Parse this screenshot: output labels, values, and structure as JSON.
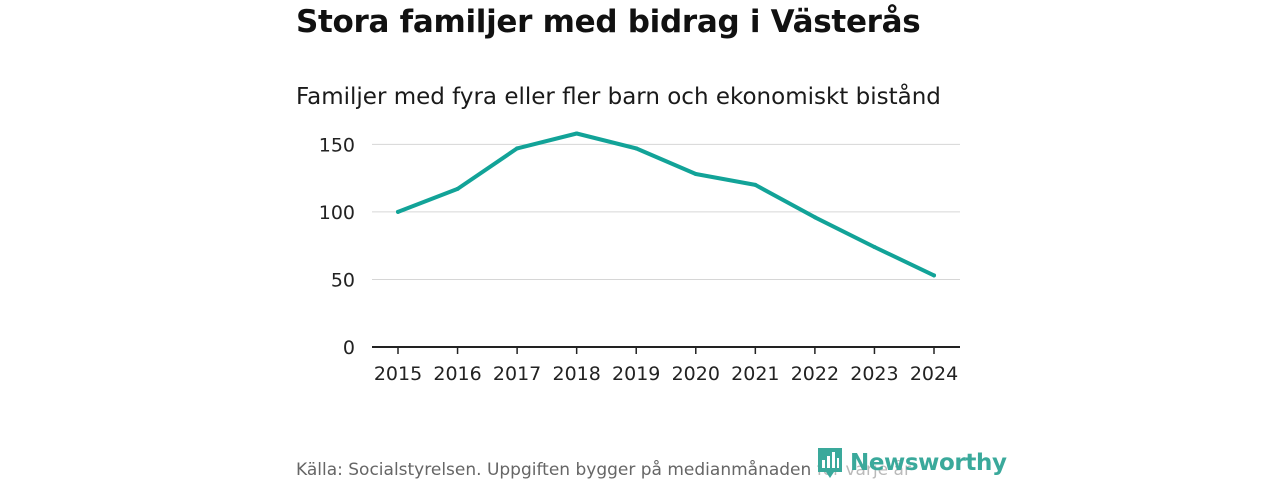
{
  "chart_data": {
    "type": "line",
    "title": "Stora familjer med bidrag i Västerås",
    "subtitle": "Familjer med fyra eller fler barn och ekonomiskt bistånd",
    "x": [
      2015,
      2016,
      2017,
      2018,
      2019,
      2020,
      2021,
      2022,
      2023,
      2024
    ],
    "x_tick_labels": [
      "2015",
      "2016",
      "2017",
      "2018",
      "2019",
      "2020",
      "2021",
      "2022",
      "2023",
      "2024"
    ],
    "series": [
      {
        "name": "Familjer med fyra eller fler barn och ekonomiskt bistånd",
        "values": [
          100,
          117,
          147,
          158,
          147,
          128,
          120,
          96,
          74,
          53
        ],
        "color": "#12a398"
      }
    ],
    "y_ticks": [
      0,
      50,
      100,
      150
    ],
    "y_tick_labels": [
      "0",
      "50",
      "100",
      "150"
    ],
    "ylim": [
      0,
      168
    ],
    "xlabel": "",
    "ylabel": "",
    "grid": true,
    "legend": "none"
  },
  "footer": {
    "source": "Källa: Socialstyrelsen. Uppgiften bygger på medianmånaden för varje år",
    "brand": "Newsworthy",
    "brand_color": "#3aa99b"
  }
}
